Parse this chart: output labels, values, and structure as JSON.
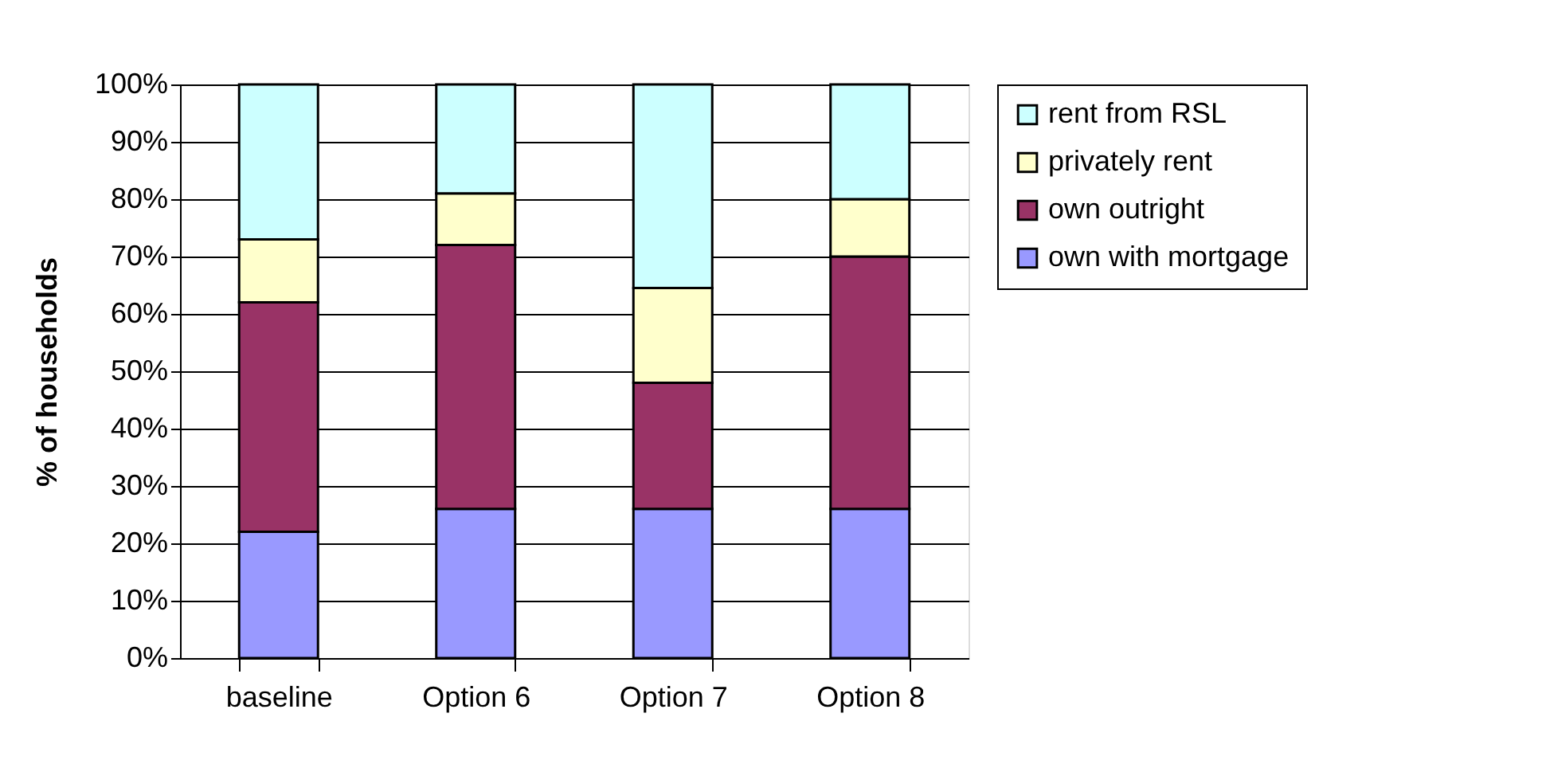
{
  "chart_data": {
    "type": "bar",
    "stacked": true,
    "ylabel": "% of households",
    "categories": [
      "baseline",
      "Option 6",
      "Option 7",
      "Option 8"
    ],
    "series": [
      {
        "name": "own with mortgage",
        "color": "#9999ff",
        "values": [
          22,
          26,
          26,
          26
        ]
      },
      {
        "name": "own outright",
        "color": "#993366",
        "values": [
          40,
          46,
          22,
          44
        ]
      },
      {
        "name": "privately rent",
        "color": "#ffffcc",
        "values": [
          11,
          9,
          16.5,
          10
        ]
      },
      {
        "name": "rent from RSL",
        "color": "#ccffff",
        "values": [
          27,
          19,
          35.5,
          20
        ]
      }
    ],
    "ylim": [
      0,
      100
    ],
    "yticks": [
      {
        "value": 0,
        "label": "0%"
      },
      {
        "value": 10,
        "label": "10%"
      },
      {
        "value": 20,
        "label": "20%"
      },
      {
        "value": 30,
        "label": "30%"
      },
      {
        "value": 40,
        "label": "40%"
      },
      {
        "value": 50,
        "label": "50%"
      },
      {
        "value": 60,
        "label": "60%"
      },
      {
        "value": 70,
        "label": "70%"
      },
      {
        "value": 80,
        "label": "80%"
      },
      {
        "value": 90,
        "label": "90%"
      },
      {
        "value": 100,
        "label": "100%"
      }
    ],
    "grid": "y",
    "legend": "right"
  }
}
